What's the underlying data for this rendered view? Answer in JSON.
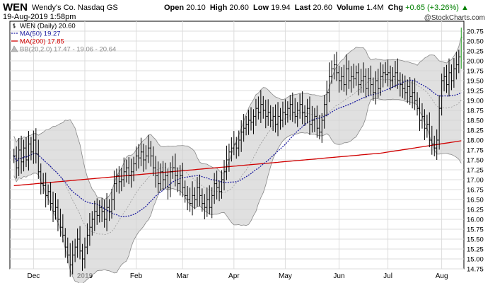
{
  "header": {
    "symbol": "WEN",
    "company": "Wendy's Co.",
    "exchange": "Nasdaq GS",
    "datetime": "19-Aug-2019 1:58pm",
    "open_label": "Open",
    "open": "20.10",
    "high_label": "High",
    "high": "20.60",
    "low_label": "Low",
    "low": "19.94",
    "last_label": "Last",
    "last": "20.60",
    "volume_label": "Volume",
    "volume": "1.4M",
    "chg_label": "Chg",
    "chg": "+0.65 (+3.26%)",
    "credit": "@StockCharts.com"
  },
  "legend": [
    {
      "text": "WEN (Daily) 20.60",
      "color": "#000000",
      "marker": "bar"
    },
    {
      "text": "MA(50) 19.27",
      "color": "#1f1fa0",
      "marker": "dotted"
    },
    {
      "text": "MA(200) 17.85",
      "color": "#d00000",
      "marker": "solid"
    },
    {
      "text": "BB(20,2.0) 17.47 - 19.06 - 20.64",
      "color": "#888888",
      "marker": "area"
    }
  ],
  "chart_data": {
    "type": "ohlc",
    "title": "WEN Wendy's Co. Nasdaq GS",
    "ylim": [
      14.75,
      21.0
    ],
    "yticks": [
      "14.75",
      "15.00",
      "15.25",
      "15.50",
      "15.75",
      "16.00",
      "16.25",
      "16.50",
      "16.75",
      "17.00",
      "17.25",
      "17.50",
      "17.75",
      "18.00",
      "18.25",
      "18.50",
      "18.75",
      "19.00",
      "19.25",
      "19.50",
      "19.75",
      "20.00",
      "20.25",
      "20.50",
      "20.75"
    ],
    "xticks": [
      {
        "label": "Dec",
        "bar_index": 8,
        "bold": false
      },
      {
        "label": "2019",
        "bar_index": 29,
        "bold": true
      },
      {
        "label": "Feb",
        "bar_index": 50,
        "bold": false
      },
      {
        "label": "Mar",
        "bar_index": 69,
        "bold": false
      },
      {
        "label": "Apr",
        "bar_index": 90,
        "bold": false
      },
      {
        "label": "May",
        "bar_index": 111,
        "bold": false
      },
      {
        "label": "Jun",
        "bar_index": 133,
        "bold": false
      },
      {
        "label": "Jul",
        "bar_index": 153,
        "bold": false
      },
      {
        "label": "Aug",
        "bar_index": 175,
        "bold": false
      }
    ],
    "closes": [
      17.6,
      17.3,
      17.75,
      17.45,
      17.8,
      17.5,
      17.9,
      17.7,
      18.0,
      17.65,
      17.2,
      16.9,
      16.85,
      16.6,
      16.7,
      16.4,
      16.2,
      16.3,
      16.0,
      15.8,
      15.6,
      15.3,
      15.1,
      14.85,
      15.1,
      15.3,
      15.5,
      15.2,
      15.0,
      15.3,
      15.6,
      15.8,
      16.0,
      16.2,
      16.1,
      16.3,
      16.2,
      16.0,
      16.3,
      16.2,
      16.5,
      16.9,
      17.1,
      16.95,
      17.0,
      17.2,
      17.3,
      17.1,
      17.2,
      17.4,
      17.6,
      17.55,
      17.7,
      17.5,
      17.6,
      17.8,
      17.6,
      17.3,
      17.1,
      16.9,
      17.2,
      17.0,
      17.1,
      16.8,
      17.2,
      17.3,
      17.1,
      16.9,
      17.1,
      16.8,
      16.6,
      16.5,
      16.4,
      16.6,
      16.5,
      16.8,
      16.6,
      16.4,
      16.3,
      16.5,
      16.3,
      16.6,
      16.9,
      16.8,
      16.7,
      17.0,
      17.2,
      17.5,
      17.7,
      17.8,
      17.9,
      17.8,
      18.0,
      18.2,
      18.3,
      18.4,
      18.5,
      18.45,
      18.6,
      18.8,
      18.7,
      18.9,
      18.75,
      18.6,
      18.7,
      18.5,
      18.6,
      18.4,
      18.6,
      18.5,
      18.7,
      18.65,
      18.8,
      18.9,
      18.7,
      18.6,
      18.75,
      18.9,
      18.7,
      18.6,
      18.8,
      18.4,
      18.5,
      18.6,
      18.3,
      18.2,
      18.5,
      18.9,
      19.2,
      19.6,
      19.8,
      19.9,
      19.7,
      19.5,
      19.6,
      19.4,
      19.8,
      19.5,
      19.6,
      19.55,
      19.7,
      19.4,
      19.5,
      19.6,
      19.3,
      19.55,
      19.4,
      19.2,
      19.5,
      19.3,
      19.6,
      19.7,
      19.65,
      19.7,
      19.5,
      19.6,
      19.7,
      19.5,
      19.4,
      19.3,
      19.2,
      19.35,
      19.1,
      19.2,
      19.0,
      18.8,
      18.5,
      18.6,
      18.3,
      18.4,
      18.0,
      17.9,
      17.8,
      18.0,
      18.8,
      19.5,
      19.6,
      19.4,
      19.7,
      19.5,
      19.8,
      19.9,
      20.1,
      20.6
    ],
    "ma_colors": {
      "ma50": "#1f1fa0",
      "ma200": "#d00000",
      "bb_fill": "#d3d3d3",
      "bb_line": "#888888",
      "up_last": "#20a020"
    }
  }
}
